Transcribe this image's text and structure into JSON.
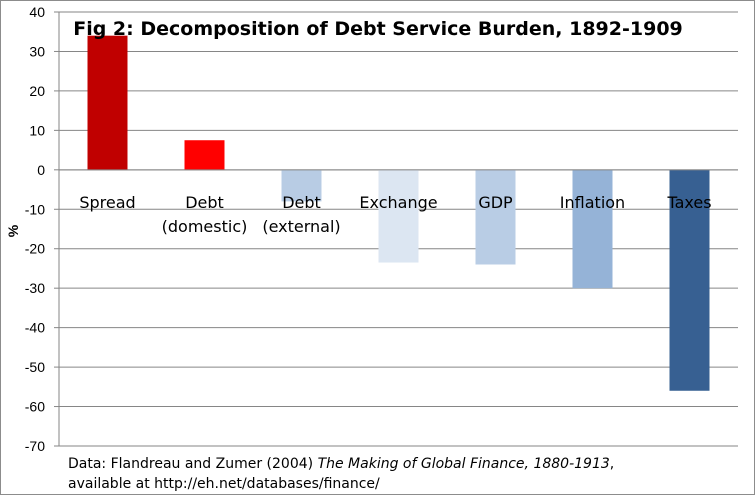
{
  "chart_data": {
    "type": "bar",
    "title": "Fig 2: Decomposition of Debt Service Burden, 1892-1909",
    "ylabel": "%",
    "xlabel": "",
    "categories": [
      [
        "Spread"
      ],
      [
        "Debt",
        "(domestic)"
      ],
      [
        "Debt",
        "(external)"
      ],
      [
        "Exchange"
      ],
      [
        "GDP"
      ],
      [
        "Inflation"
      ],
      [
        "Taxes"
      ]
    ],
    "values": [
      34,
      7.5,
      -8,
      -23.5,
      -24,
      -30,
      -56
    ],
    "colors": [
      "#c00000",
      "#ff0000",
      "#b8cce4",
      "#dce6f2",
      "#b9cde5",
      "#95b3d7",
      "#376092"
    ],
    "ylim": [
      -70,
      40
    ],
    "yticks": [
      40,
      30,
      20,
      10,
      0,
      -10,
      -20,
      -30,
      -40,
      -50,
      -60,
      -70
    ],
    "grid": true,
    "legend": "none"
  },
  "source": {
    "prefix": "Data: Flandreau and Zumer (2004)  ",
    "book": "The Making of Global Finance, 1880-1913",
    "suffix": ",",
    "line2": "available at http://eh.net/databases/finance/"
  }
}
